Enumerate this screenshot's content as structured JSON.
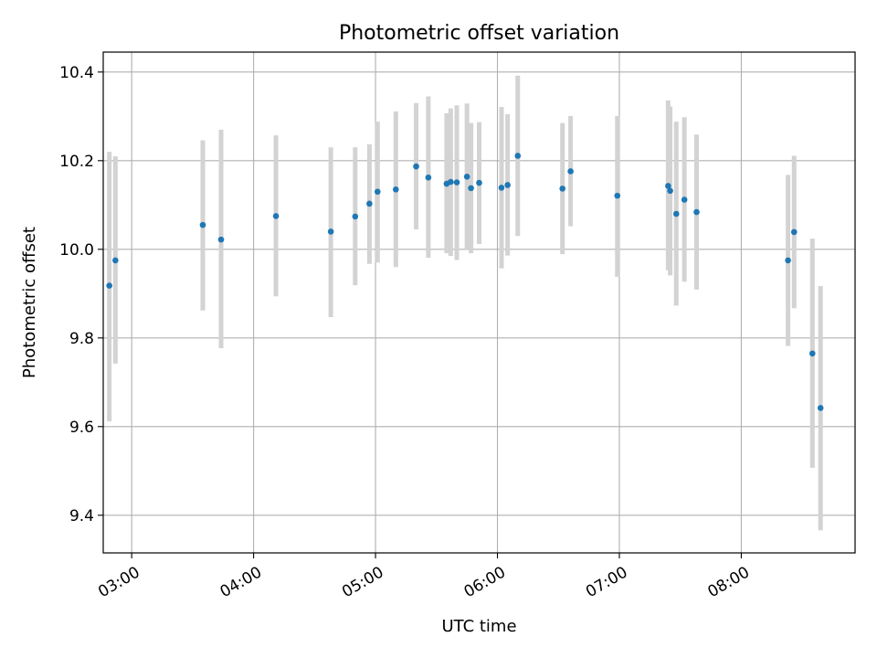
{
  "chart_data": {
    "type": "scatter",
    "title": "Photometric offset variation",
    "xlabel": "UTC time",
    "ylabel": "Photometric offset",
    "x_is_time": true,
    "xlim": [
      "02:46",
      "08:56"
    ],
    "ylim": [
      9.315,
      10.445
    ],
    "x_ticks": [
      "03:00",
      "04:00",
      "05:00",
      "06:00",
      "07:00",
      "08:00"
    ],
    "y_ticks": [
      "9.4",
      "9.6",
      "9.8",
      "10.0",
      "10.2",
      "10.4"
    ],
    "grid": true,
    "colors": {
      "marker": "#1f77b4",
      "errorbar": "#d3d3d3",
      "grid": "#b0b0b0"
    },
    "points": [
      {
        "x": "02:49",
        "y": 9.918,
        "ylow": 9.612,
        "yhigh": 10.22
      },
      {
        "x": "02:52",
        "y": 9.975,
        "ylow": 9.742,
        "yhigh": 10.21
      },
      {
        "x": "03:35",
        "y": 10.055,
        "ylow": 9.862,
        "yhigh": 10.246
      },
      {
        "x": "03:44",
        "y": 10.022,
        "ylow": 9.777,
        "yhigh": 10.27
      },
      {
        "x": "04:11",
        "y": 10.075,
        "ylow": 9.894,
        "yhigh": 10.257
      },
      {
        "x": "04:38",
        "y": 10.04,
        "ylow": 9.847,
        "yhigh": 10.23
      },
      {
        "x": "04:50",
        "y": 10.074,
        "ylow": 9.919,
        "yhigh": 10.23
      },
      {
        "x": "04:57",
        "y": 10.103,
        "ylow": 9.967,
        "yhigh": 10.237
      },
      {
        "x": "05:01",
        "y": 10.13,
        "ylow": 9.97,
        "yhigh": 10.288
      },
      {
        "x": "05:10",
        "y": 10.135,
        "ylow": 9.96,
        "yhigh": 10.311
      },
      {
        "x": "05:20",
        "y": 10.187,
        "ylow": 10.045,
        "yhigh": 10.33
      },
      {
        "x": "05:26",
        "y": 10.162,
        "ylow": 9.981,
        "yhigh": 10.345
      },
      {
        "x": "05:35",
        "y": 10.148,
        "ylow": 9.991,
        "yhigh": 10.307
      },
      {
        "x": "05:37",
        "y": 10.152,
        "ylow": 9.985,
        "yhigh": 10.318
      },
      {
        "x": "05:40",
        "y": 10.151,
        "ylow": 9.976,
        "yhigh": 10.325
      },
      {
        "x": "05:45",
        "y": 10.164,
        "ylow": 9.998,
        "yhigh": 10.329
      },
      {
        "x": "05:47",
        "y": 10.138,
        "ylow": 9.991,
        "yhigh": 10.285
      },
      {
        "x": "05:51",
        "y": 10.15,
        "ylow": 10.012,
        "yhigh": 10.287
      },
      {
        "x": "06:02",
        "y": 10.139,
        "ylow": 9.957,
        "yhigh": 10.321
      },
      {
        "x": "06:05",
        "y": 10.145,
        "ylow": 9.986,
        "yhigh": 10.305
      },
      {
        "x": "06:10",
        "y": 10.211,
        "ylow": 10.03,
        "yhigh": 10.392
      },
      {
        "x": "06:32",
        "y": 10.137,
        "ylow": 9.989,
        "yhigh": 10.285
      },
      {
        "x": "06:36",
        "y": 10.176,
        "ylow": 10.052,
        "yhigh": 10.301
      },
      {
        "x": "06:59",
        "y": 10.121,
        "ylow": 9.938,
        "yhigh": 10.301
      },
      {
        "x": "07:24",
        "y": 10.143,
        "ylow": 9.953,
        "yhigh": 10.336
      },
      {
        "x": "07:25",
        "y": 10.132,
        "ylow": 9.941,
        "yhigh": 10.322
      },
      {
        "x": "07:28",
        "y": 10.08,
        "ylow": 9.873,
        "yhigh": 10.288
      },
      {
        "x": "07:32",
        "y": 10.112,
        "ylow": 9.927,
        "yhigh": 10.298
      },
      {
        "x": "07:38",
        "y": 10.084,
        "ylow": 9.909,
        "yhigh": 10.259
      },
      {
        "x": "08:23",
        "y": 9.975,
        "ylow": 9.782,
        "yhigh": 10.168
      },
      {
        "x": "08:26",
        "y": 10.039,
        "ylow": 9.867,
        "yhigh": 10.211
      },
      {
        "x": "08:35",
        "y": 9.765,
        "ylow": 9.507,
        "yhigh": 10.024
      },
      {
        "x": "08:39",
        "y": 9.642,
        "ylow": 9.366,
        "yhigh": 9.917
      }
    ]
  }
}
